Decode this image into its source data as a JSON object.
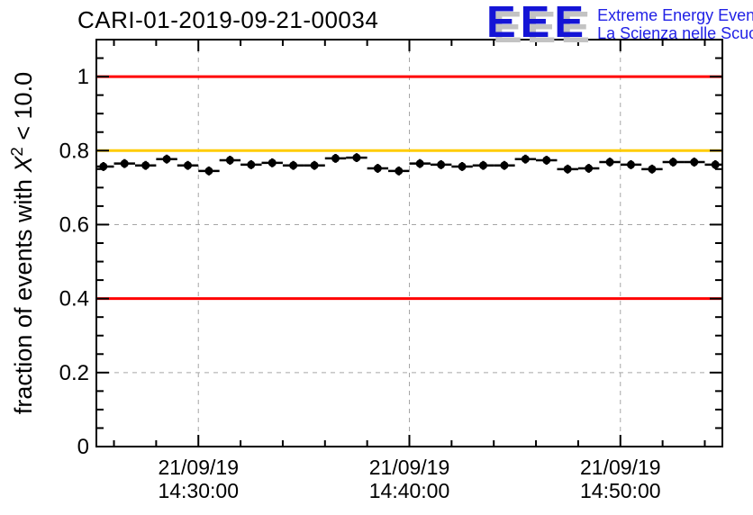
{
  "title": "CARI-01-2019-09-21-00034",
  "logo": {
    "letters": "EEE",
    "line1": "Extreme Energy Events",
    "line2": "La Scienza nelle Scuole",
    "letter_color": "#1414d6",
    "shadow_color": "#c3c3c3",
    "text_color": "#2222e6"
  },
  "ylabel_parts": {
    "prefix": "fraction of events with ",
    "symbol": "X",
    "sup": "2",
    "suffix": " < 10.0"
  },
  "chart_data": {
    "type": "scatter",
    "title": "CARI-01-2019-09-21-00034",
    "ylabel": "fraction of events with X^2 < 10.0",
    "xlabel": "",
    "ylim": [
      0,
      1.1
    ],
    "x_range_s": [
      0,
      1780
    ],
    "x_axis_start_time": "21/09/19 14:25:10",
    "grid": {
      "on": true,
      "color": "#a6a6a6",
      "dash": "5,5"
    },
    "y_major_ticks": [
      {
        "v": 0,
        "label": "0"
      },
      {
        "v": 0.2,
        "label": "0.2"
      },
      {
        "v": 0.4,
        "label": "0.4"
      },
      {
        "v": 0.6,
        "label": "0.6"
      },
      {
        "v": 0.8,
        "label": "0.8"
      },
      {
        "v": 1.0,
        "label": "1"
      }
    ],
    "y_minor_step": 0.05,
    "x_major_ticks": [
      {
        "t": 290,
        "line1": "21/09/19",
        "line2": "14:30:00"
      },
      {
        "t": 890,
        "line1": "21/09/19",
        "line2": "14:40:00"
      },
      {
        "t": 1490,
        "line1": "21/09/19",
        "line2": "14:50:00"
      }
    ],
    "x_minor_start_s": 50,
    "x_minor_step_s": 120,
    "reference_lines": [
      {
        "y": 1.0,
        "color": "#ff0000"
      },
      {
        "y": 0.8,
        "color": "#ffcc00"
      },
      {
        "y": 0.4,
        "color": "#ff0000"
      }
    ],
    "series": [
      {
        "name": "fraction of events with chi2 < 10",
        "marker_color": "#000000",
        "x_bin_halfwidth_s": 30,
        "y_err": 0.012,
        "times": [
          "14:25:30",
          "14:26:30",
          "14:27:30",
          "14:28:30",
          "14:29:30",
          "14:30:30",
          "14:31:30",
          "14:32:30",
          "14:33:30",
          "14:34:30",
          "14:35:30",
          "14:36:30",
          "14:37:30",
          "14:38:30",
          "14:39:30",
          "14:40:30",
          "14:41:30",
          "14:42:30",
          "14:43:30",
          "14:44:30",
          "14:45:30",
          "14:46:30",
          "14:47:30",
          "14:48:30",
          "14:49:30",
          "14:50:30",
          "14:51:30",
          "14:52:30",
          "14:53:30",
          "14:54:30"
        ],
        "x_seconds": [
          20,
          80,
          140,
          200,
          260,
          320,
          380,
          440,
          500,
          560,
          620,
          680,
          740,
          800,
          860,
          920,
          980,
          1040,
          1100,
          1160,
          1220,
          1280,
          1340,
          1400,
          1460,
          1520,
          1580,
          1640,
          1700,
          1760
        ],
        "values": [
          0.757,
          0.765,
          0.76,
          0.777,
          0.76,
          0.745,
          0.774,
          0.762,
          0.767,
          0.76,
          0.76,
          0.779,
          0.781,
          0.752,
          0.745,
          0.765,
          0.762,
          0.757,
          0.76,
          0.76,
          0.777,
          0.774,
          0.75,
          0.752,
          0.769,
          0.762,
          0.75,
          0.769,
          0.769,
          0.762
        ]
      }
    ]
  }
}
